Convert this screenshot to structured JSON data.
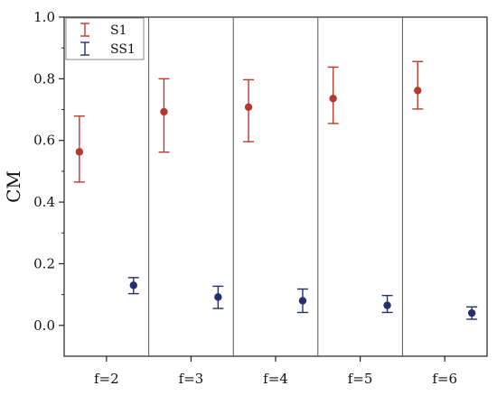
{
  "chart_data": {
    "type": "scatter",
    "categories": [
      "f=2",
      "f=3",
      "f=4",
      "f=5",
      "f=6"
    ],
    "ylabel": "CM",
    "xlabel": "",
    "ylim": [
      -0.1,
      1.0
    ],
    "yticks": [
      "0.0",
      "0.2",
      "0.4",
      "0.6",
      "0.8",
      "1.0"
    ],
    "grid": false,
    "category_separators": true,
    "legend_position": "top-left",
    "series": [
      {
        "name": "S1",
        "color": "#b03a2e",
        "error_color": "#c0392b",
        "values": [
          0.563,
          0.693,
          0.708,
          0.736,
          0.762
        ],
        "lower": [
          0.465,
          0.562,
          0.596,
          0.655,
          0.702
        ],
        "upper": [
          0.679,
          0.8,
          0.797,
          0.838,
          0.856
        ]
      },
      {
        "name": "SS1",
        "color": "#262f6e",
        "error_color": "#262f6e",
        "values": [
          0.13,
          0.092,
          0.08,
          0.065,
          0.04
        ],
        "lower": [
          0.103,
          0.055,
          0.042,
          0.042,
          0.02
        ],
        "upper": [
          0.155,
          0.127,
          0.118,
          0.097,
          0.06
        ]
      }
    ]
  }
}
